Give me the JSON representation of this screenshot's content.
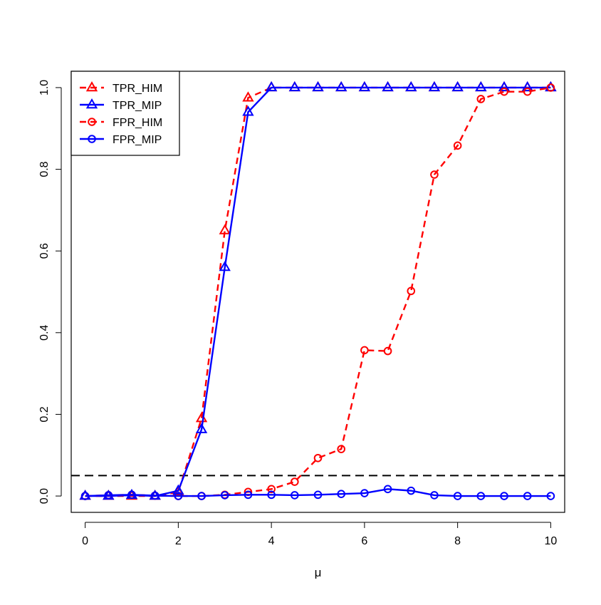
{
  "chart_data": {
    "type": "line",
    "title": "",
    "xlabel": "μ",
    "ylabel": "",
    "xlim": [
      -0.3,
      10.3
    ],
    "ylim": [
      -0.04,
      1.04
    ],
    "xticks": [
      "0",
      "2",
      "4",
      "6",
      "8",
      "10"
    ],
    "yticks": [
      "0.0",
      "0.2",
      "0.4",
      "0.6",
      "0.8",
      "1.0"
    ],
    "x": [
      0,
      0.5,
      1,
      1.5,
      2,
      2.5,
      3,
      3.5,
      4,
      4.5,
      5,
      5.5,
      6,
      6.5,
      7,
      7.5,
      8,
      8.5,
      9,
      9.5,
      10
    ],
    "reference_line": {
      "y": 0.05,
      "style": "dashed",
      "color": "#000000"
    },
    "legend_position": "top-left",
    "series": [
      {
        "name": "TPR_HIM",
        "color": "#ff0000",
        "linestyle": "dashed",
        "marker": "triangle",
        "values": [
          0,
          0,
          0,
          0,
          0.01,
          0.19,
          0.65,
          0.975,
          1,
          1,
          1,
          1,
          1,
          1,
          1,
          1,
          1,
          1,
          1,
          1,
          1
        ]
      },
      {
        "name": "TPR_MIP",
        "color": "#0000ff",
        "linestyle": "solid",
        "marker": "triangle",
        "values": [
          0,
          0,
          0.002,
          0,
          0.013,
          0.163,
          0.56,
          0.94,
          1,
          1,
          1,
          1,
          1,
          1,
          1,
          1,
          1,
          1,
          1,
          1,
          1
        ]
      },
      {
        "name": "FPR_HIM",
        "color": "#ff0000",
        "linestyle": "dashed",
        "marker": "circle",
        "values": [
          0,
          0.002,
          0.003,
          0.001,
          0,
          0,
          0.003,
          0.01,
          0.017,
          0.035,
          0.093,
          0.115,
          0.357,
          0.355,
          0.502,
          0.787,
          0.858,
          0.972,
          0.99,
          0.99,
          1
        ]
      },
      {
        "name": "FPR_MIP",
        "color": "#0000ff",
        "linestyle": "solid",
        "marker": "circle",
        "values": [
          0,
          0.002,
          0.003,
          0.001,
          0,
          0,
          0.002,
          0.003,
          0.003,
          0.002,
          0.003,
          0.005,
          0.007,
          0.017,
          0.013,
          0.002,
          0,
          0,
          0,
          0,
          0
        ]
      }
    ]
  }
}
